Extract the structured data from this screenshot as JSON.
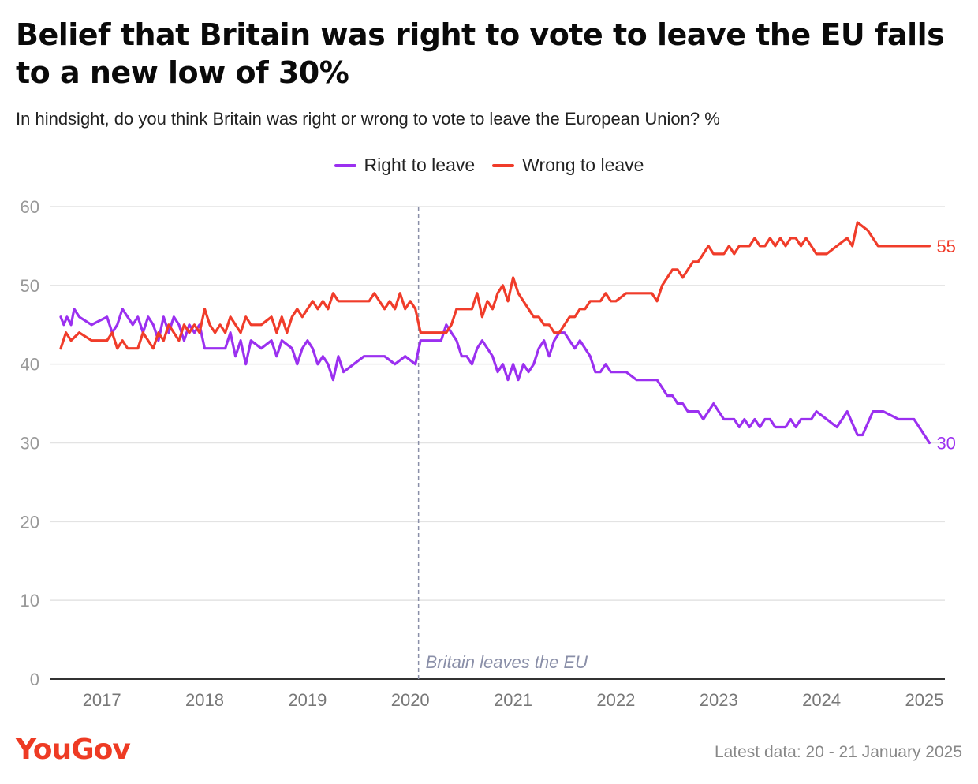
{
  "title": "Belief that Britain was right to vote to leave the EU falls to a new low of 30%",
  "subtitle": "In hindsight, do you think Britain was right or wrong to vote to leave the European Union? %",
  "footer": {
    "logo": "YouGov",
    "latest": "Latest data: 20 - 21 January 2025"
  },
  "colors": {
    "right": "#9b30f0",
    "wrong": "#f03c2a",
    "grid": "#e3e3e3",
    "axis": "#333333",
    "tick": "#999999",
    "annotation": "#8a8fa8",
    "logo": "#ee3b24"
  },
  "chart_data": {
    "type": "line",
    "xlabel": "",
    "ylabel": "",
    "ylim": [
      0,
      60
    ],
    "yticks": [
      0,
      10,
      20,
      30,
      40,
      50,
      60
    ],
    "xlim": [
      2016.5,
      2025.2
    ],
    "xticks": [
      2017,
      2018,
      2019,
      2020,
      2021,
      2022,
      2023,
      2024,
      2025
    ],
    "grid": true,
    "legend_position": "top-center",
    "annotation": {
      "text": "Britain leaves the EU",
      "x": 2020.08
    },
    "series": [
      {
        "name": "Right to leave",
        "color": "#9b30f0",
        "end_label": "30",
        "points": [
          [
            2016.6,
            46
          ],
          [
            2016.63,
            45
          ],
          [
            2016.66,
            46
          ],
          [
            2016.7,
            45
          ],
          [
            2016.73,
            47
          ],
          [
            2016.78,
            46
          ],
          [
            2016.9,
            45
          ],
          [
            2017.05,
            46
          ],
          [
            2017.1,
            44
          ],
          [
            2017.15,
            45
          ],
          [
            2017.2,
            47
          ],
          [
            2017.25,
            46
          ],
          [
            2017.3,
            45
          ],
          [
            2017.35,
            46
          ],
          [
            2017.4,
            44
          ],
          [
            2017.45,
            46
          ],
          [
            2017.5,
            45
          ],
          [
            2017.55,
            43
          ],
          [
            2017.6,
            46
          ],
          [
            2017.65,
            44
          ],
          [
            2017.7,
            46
          ],
          [
            2017.75,
            45
          ],
          [
            2017.8,
            43
          ],
          [
            2017.85,
            45
          ],
          [
            2017.9,
            44
          ],
          [
            2017.95,
            45
          ],
          [
            2018.0,
            42
          ],
          [
            2018.1,
            42
          ],
          [
            2018.2,
            42
          ],
          [
            2018.25,
            44
          ],
          [
            2018.3,
            41
          ],
          [
            2018.35,
            43
          ],
          [
            2018.4,
            40
          ],
          [
            2018.45,
            43
          ],
          [
            2018.55,
            42
          ],
          [
            2018.65,
            43
          ],
          [
            2018.7,
            41
          ],
          [
            2018.75,
            43
          ],
          [
            2018.85,
            42
          ],
          [
            2018.9,
            40
          ],
          [
            2018.95,
            42
          ],
          [
            2019.0,
            43
          ],
          [
            2019.05,
            42
          ],
          [
            2019.1,
            40
          ],
          [
            2019.15,
            41
          ],
          [
            2019.2,
            40
          ],
          [
            2019.25,
            38
          ],
          [
            2019.3,
            41
          ],
          [
            2019.35,
            39
          ],
          [
            2019.45,
            40
          ],
          [
            2019.55,
            41
          ],
          [
            2019.65,
            41
          ],
          [
            2019.75,
            41
          ],
          [
            2019.85,
            40
          ],
          [
            2019.95,
            41
          ],
          [
            2020.05,
            40
          ],
          [
            2020.1,
            43
          ],
          [
            2020.2,
            43
          ],
          [
            2020.3,
            43
          ],
          [
            2020.35,
            45
          ],
          [
            2020.4,
            44
          ],
          [
            2020.45,
            43
          ],
          [
            2020.5,
            41
          ],
          [
            2020.55,
            41
          ],
          [
            2020.6,
            40
          ],
          [
            2020.65,
            42
          ],
          [
            2020.7,
            43
          ],
          [
            2020.75,
            42
          ],
          [
            2020.8,
            41
          ],
          [
            2020.85,
            39
          ],
          [
            2020.9,
            40
          ],
          [
            2020.95,
            38
          ],
          [
            2021.0,
            40
          ],
          [
            2021.05,
            38
          ],
          [
            2021.1,
            40
          ],
          [
            2021.15,
            39
          ],
          [
            2021.2,
            40
          ],
          [
            2021.25,
            42
          ],
          [
            2021.3,
            43
          ],
          [
            2021.35,
            41
          ],
          [
            2021.4,
            43
          ],
          [
            2021.45,
            44
          ],
          [
            2021.5,
            44
          ],
          [
            2021.55,
            43
          ],
          [
            2021.6,
            42
          ],
          [
            2021.65,
            43
          ],
          [
            2021.7,
            42
          ],
          [
            2021.75,
            41
          ],
          [
            2021.8,
            39
          ],
          [
            2021.85,
            39
          ],
          [
            2021.9,
            40
          ],
          [
            2021.95,
            39
          ],
          [
            2022.0,
            39
          ],
          [
            2022.1,
            39
          ],
          [
            2022.2,
            38
          ],
          [
            2022.3,
            38
          ],
          [
            2022.35,
            38
          ],
          [
            2022.4,
            38
          ],
          [
            2022.45,
            37
          ],
          [
            2022.5,
            36
          ],
          [
            2022.55,
            36
          ],
          [
            2022.6,
            35
          ],
          [
            2022.65,
            35
          ],
          [
            2022.7,
            34
          ],
          [
            2022.75,
            34
          ],
          [
            2022.8,
            34
          ],
          [
            2022.85,
            33
          ],
          [
            2022.9,
            34
          ],
          [
            2022.95,
            35
          ],
          [
            2023.0,
            34
          ],
          [
            2023.05,
            33
          ],
          [
            2023.1,
            33
          ],
          [
            2023.15,
            33
          ],
          [
            2023.2,
            32
          ],
          [
            2023.25,
            33
          ],
          [
            2023.3,
            32
          ],
          [
            2023.35,
            33
          ],
          [
            2023.4,
            32
          ],
          [
            2023.45,
            33
          ],
          [
            2023.5,
            33
          ],
          [
            2023.55,
            32
          ],
          [
            2023.6,
            32
          ],
          [
            2023.65,
            32
          ],
          [
            2023.7,
            33
          ],
          [
            2023.75,
            32
          ],
          [
            2023.8,
            33
          ],
          [
            2023.85,
            33
          ],
          [
            2023.9,
            33
          ],
          [
            2023.95,
            34
          ],
          [
            2024.05,
            33
          ],
          [
            2024.15,
            32
          ],
          [
            2024.25,
            34
          ],
          [
            2024.35,
            31
          ],
          [
            2024.4,
            31
          ],
          [
            2024.5,
            34
          ],
          [
            2024.6,
            34
          ],
          [
            2024.75,
            33
          ],
          [
            2024.9,
            33
          ],
          [
            2025.05,
            30
          ]
        ]
      },
      {
        "name": "Wrong to leave",
        "color": "#f03c2a",
        "end_label": "55",
        "points": [
          [
            2016.6,
            42
          ],
          [
            2016.65,
            44
          ],
          [
            2016.7,
            43
          ],
          [
            2016.78,
            44
          ],
          [
            2016.9,
            43
          ],
          [
            2017.05,
            43
          ],
          [
            2017.1,
            44
          ],
          [
            2017.15,
            42
          ],
          [
            2017.2,
            43
          ],
          [
            2017.25,
            42
          ],
          [
            2017.35,
            42
          ],
          [
            2017.4,
            44
          ],
          [
            2017.45,
            43
          ],
          [
            2017.5,
            42
          ],
          [
            2017.55,
            44
          ],
          [
            2017.6,
            43
          ],
          [
            2017.65,
            45
          ],
          [
            2017.7,
            44
          ],
          [
            2017.75,
            43
          ],
          [
            2017.8,
            45
          ],
          [
            2017.85,
            44
          ],
          [
            2017.9,
            45
          ],
          [
            2017.95,
            44
          ],
          [
            2018.0,
            47
          ],
          [
            2018.05,
            45
          ],
          [
            2018.1,
            44
          ],
          [
            2018.15,
            45
          ],
          [
            2018.2,
            44
          ],
          [
            2018.25,
            46
          ],
          [
            2018.3,
            45
          ],
          [
            2018.35,
            44
          ],
          [
            2018.4,
            46
          ],
          [
            2018.45,
            45
          ],
          [
            2018.55,
            45
          ],
          [
            2018.65,
            46
          ],
          [
            2018.7,
            44
          ],
          [
            2018.75,
            46
          ],
          [
            2018.8,
            44
          ],
          [
            2018.85,
            46
          ],
          [
            2018.9,
            47
          ],
          [
            2018.95,
            46
          ],
          [
            2019.0,
            47
          ],
          [
            2019.05,
            48
          ],
          [
            2019.1,
            47
          ],
          [
            2019.15,
            48
          ],
          [
            2019.2,
            47
          ],
          [
            2019.25,
            49
          ],
          [
            2019.3,
            48
          ],
          [
            2019.4,
            48
          ],
          [
            2019.5,
            48
          ],
          [
            2019.6,
            48
          ],
          [
            2019.65,
            49
          ],
          [
            2019.7,
            48
          ],
          [
            2019.75,
            47
          ],
          [
            2019.8,
            48
          ],
          [
            2019.85,
            47
          ],
          [
            2019.9,
            49
          ],
          [
            2019.95,
            47
          ],
          [
            2020.0,
            48
          ],
          [
            2020.05,
            47
          ],
          [
            2020.1,
            44
          ],
          [
            2020.2,
            44
          ],
          [
            2020.3,
            44
          ],
          [
            2020.35,
            44
          ],
          [
            2020.4,
            45
          ],
          [
            2020.45,
            47
          ],
          [
            2020.5,
            47
          ],
          [
            2020.55,
            47
          ],
          [
            2020.6,
            47
          ],
          [
            2020.65,
            49
          ],
          [
            2020.7,
            46
          ],
          [
            2020.75,
            48
          ],
          [
            2020.8,
            47
          ],
          [
            2020.85,
            49
          ],
          [
            2020.9,
            50
          ],
          [
            2020.95,
            48
          ],
          [
            2021.0,
            51
          ],
          [
            2021.05,
            49
          ],
          [
            2021.1,
            48
          ],
          [
            2021.15,
            47
          ],
          [
            2021.2,
            46
          ],
          [
            2021.25,
            46
          ],
          [
            2021.3,
            45
          ],
          [
            2021.35,
            45
          ],
          [
            2021.4,
            44
          ],
          [
            2021.45,
            44
          ],
          [
            2021.5,
            45
          ],
          [
            2021.55,
            46
          ],
          [
            2021.6,
            46
          ],
          [
            2021.65,
            47
          ],
          [
            2021.7,
            47
          ],
          [
            2021.75,
            48
          ],
          [
            2021.8,
            48
          ],
          [
            2021.85,
            48
          ],
          [
            2021.9,
            49
          ],
          [
            2021.95,
            48
          ],
          [
            2022.0,
            48
          ],
          [
            2022.1,
            49
          ],
          [
            2022.2,
            49
          ],
          [
            2022.3,
            49
          ],
          [
            2022.35,
            49
          ],
          [
            2022.4,
            48
          ],
          [
            2022.45,
            50
          ],
          [
            2022.5,
            51
          ],
          [
            2022.55,
            52
          ],
          [
            2022.6,
            52
          ],
          [
            2022.65,
            51
          ],
          [
            2022.7,
            52
          ],
          [
            2022.75,
            53
          ],
          [
            2022.8,
            53
          ],
          [
            2022.85,
            54
          ],
          [
            2022.9,
            55
          ],
          [
            2022.95,
            54
          ],
          [
            2023.0,
            54
          ],
          [
            2023.05,
            54
          ],
          [
            2023.1,
            55
          ],
          [
            2023.15,
            54
          ],
          [
            2023.2,
            55
          ],
          [
            2023.25,
            55
          ],
          [
            2023.3,
            55
          ],
          [
            2023.35,
            56
          ],
          [
            2023.4,
            55
          ],
          [
            2023.45,
            55
          ],
          [
            2023.5,
            56
          ],
          [
            2023.55,
            55
          ],
          [
            2023.6,
            56
          ],
          [
            2023.65,
            55
          ],
          [
            2023.7,
            56
          ],
          [
            2023.75,
            56
          ],
          [
            2023.8,
            55
          ],
          [
            2023.85,
            56
          ],
          [
            2023.9,
            55
          ],
          [
            2023.95,
            54
          ],
          [
            2024.05,
            54
          ],
          [
            2024.15,
            55
          ],
          [
            2024.25,
            56
          ],
          [
            2024.3,
            55
          ],
          [
            2024.35,
            58
          ],
          [
            2024.45,
            57
          ],
          [
            2024.55,
            55
          ],
          [
            2024.7,
            55
          ],
          [
            2024.85,
            55
          ],
          [
            2025.05,
            55
          ]
        ]
      }
    ]
  }
}
